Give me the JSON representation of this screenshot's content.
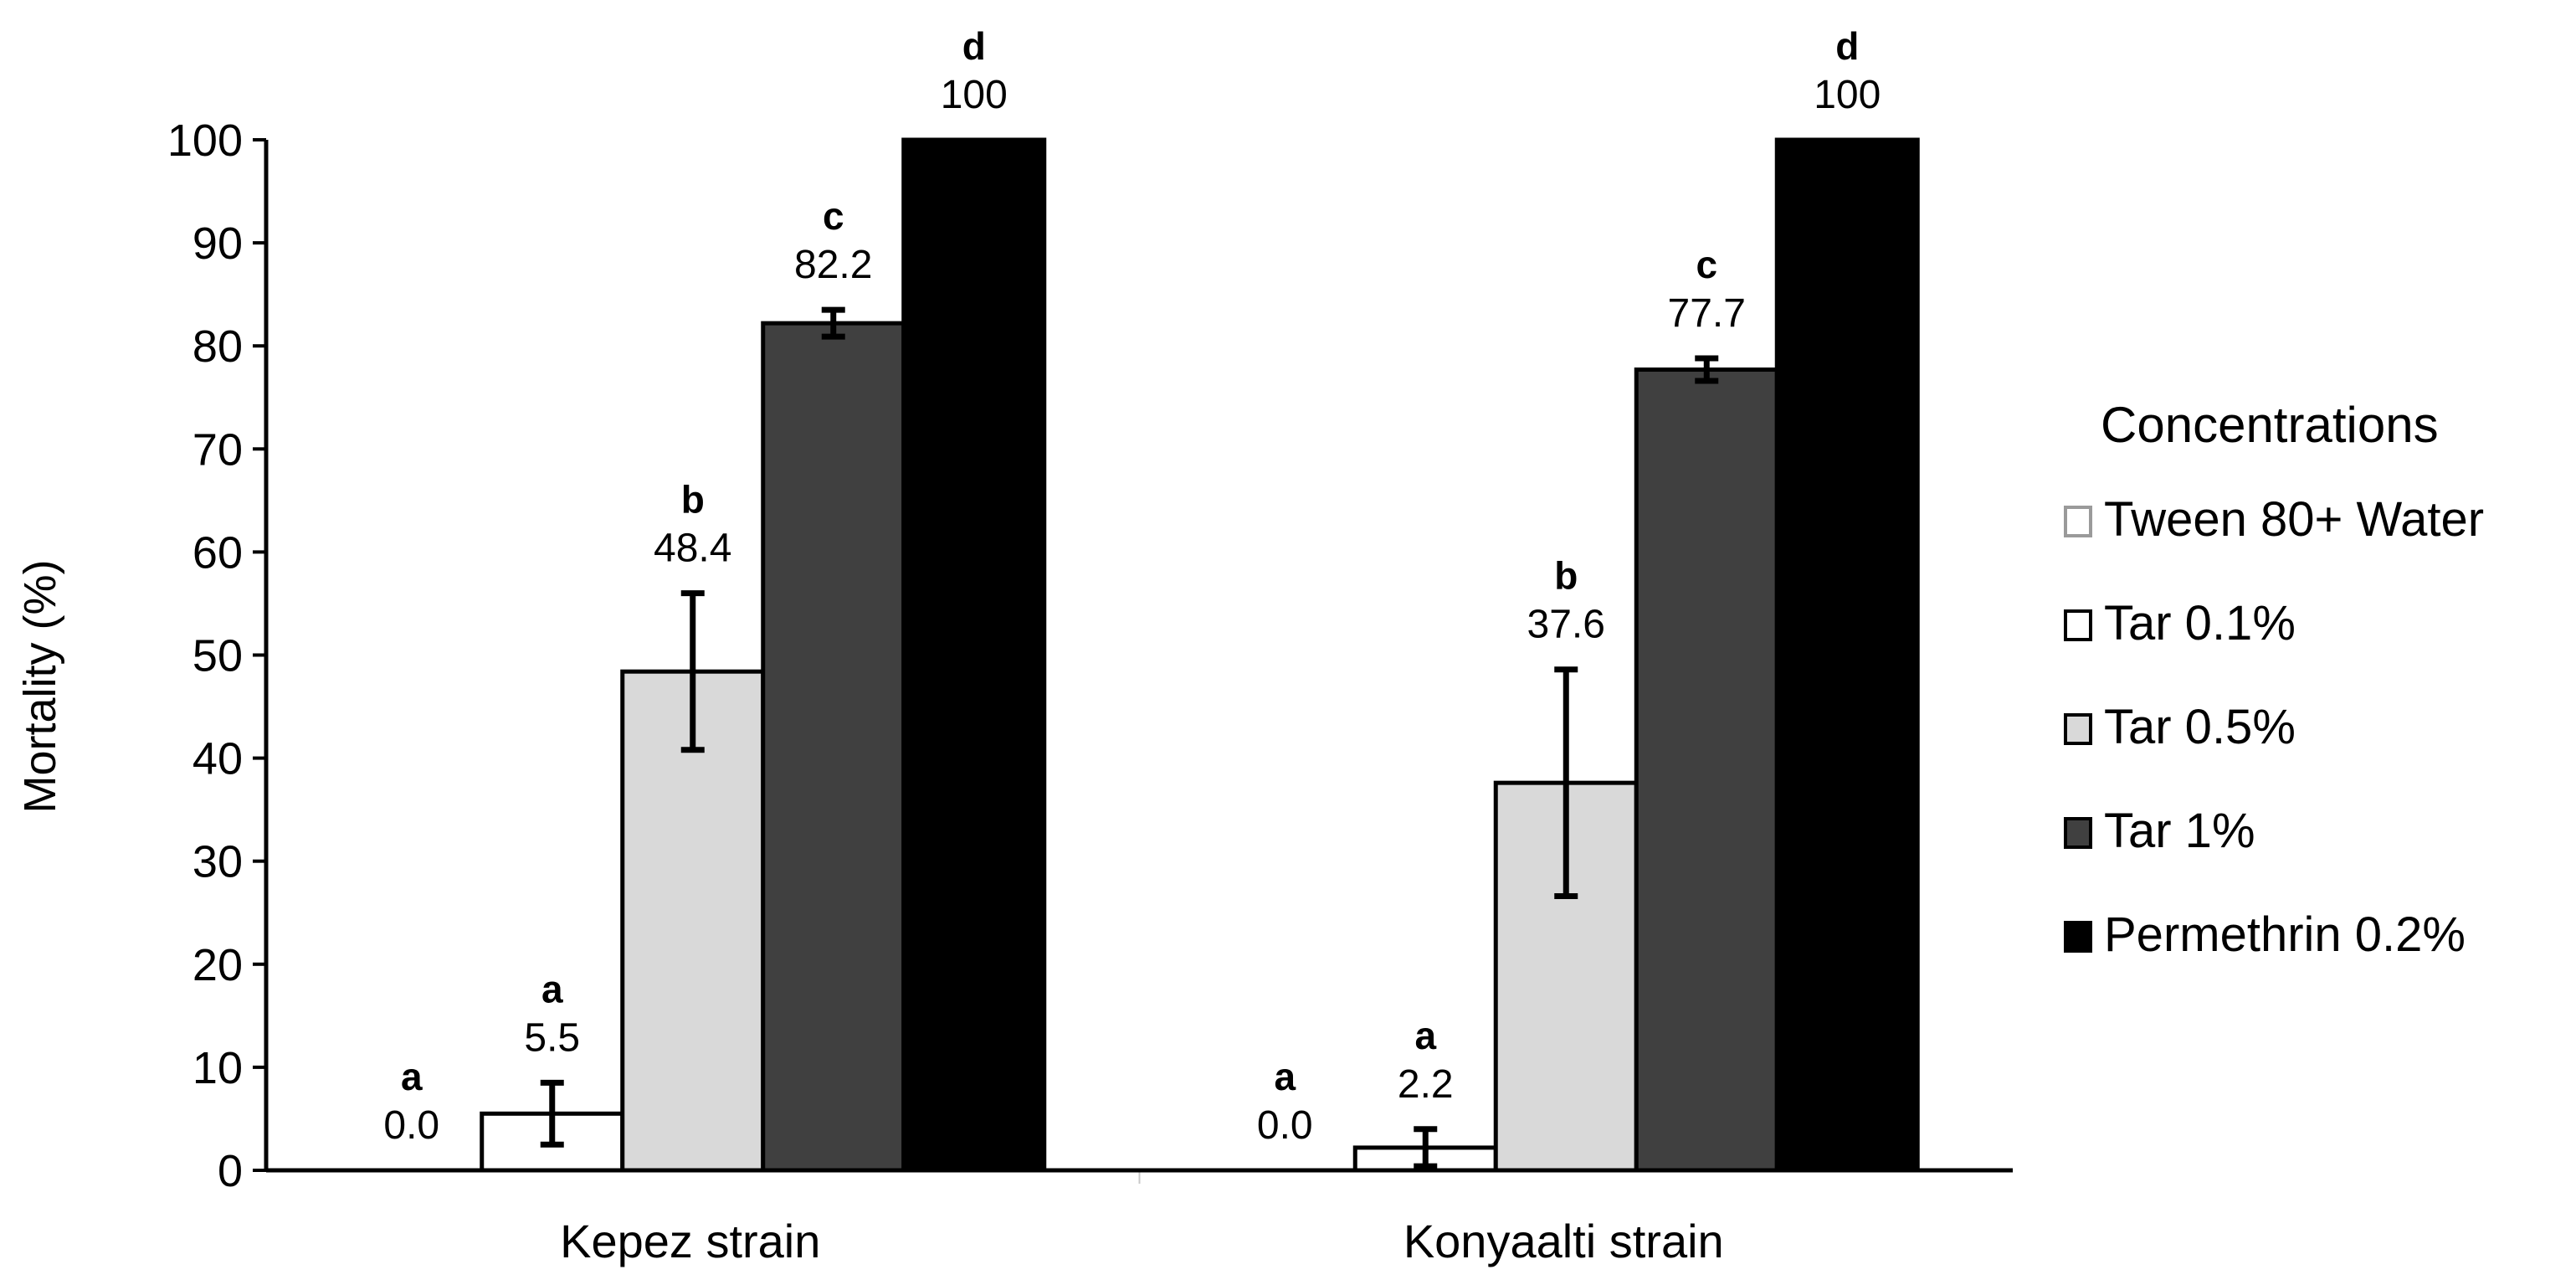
{
  "chart_data": {
    "type": "bar",
    "title": "",
    "xlabel": "",
    "ylabel": "Mortality (%)",
    "ylim": [
      0,
      100
    ],
    "yticks": [
      0,
      10,
      20,
      30,
      40,
      50,
      60,
      70,
      80,
      90,
      100
    ],
    "categories": [
      "Kepez strain",
      "Konyaalti strain"
    ],
    "legend_title": "Concentrations",
    "legend_position": "right",
    "series": [
      {
        "name": "Tween 80+ Water",
        "color": "#ffffff",
        "stroke": "#9a9a9a",
        "values": [
          0.0,
          0.0
        ],
        "labels": [
          "0.0",
          "0.0"
        ],
        "letters": [
          "a",
          "a"
        ],
        "errors": [
          0,
          0
        ]
      },
      {
        "name": "Tar 0.1%",
        "color": "#ffffff",
        "stroke": "#000000",
        "values": [
          5.5,
          2.2
        ],
        "labels": [
          "5.5",
          "2.2"
        ],
        "letters": [
          "a",
          "a"
        ],
        "errors": [
          3.0,
          1.8
        ]
      },
      {
        "name": "Tar 0.5%",
        "color": "#d9d9d9",
        "stroke": "#000000",
        "values": [
          48.4,
          37.6
        ],
        "labels": [
          "48.4",
          "37.6"
        ],
        "letters": [
          "b",
          "b"
        ],
        "errors": [
          7.6,
          11.0
        ]
      },
      {
        "name": "Tar 1%",
        "color": "#404040",
        "stroke": "#000000",
        "values": [
          82.2,
          77.7
        ],
        "labels": [
          "82.2",
          "77.7"
        ],
        "letters": [
          "c",
          "c"
        ],
        "errors": [
          1.3,
          1.1
        ]
      },
      {
        "name": "Permethrin 0.2%",
        "color": "#000000",
        "stroke": "#000000",
        "values": [
          100,
          100
        ],
        "labels": [
          "100",
          "100"
        ],
        "letters": [
          "d",
          "d"
        ],
        "errors": [
          0,
          0
        ]
      }
    ]
  }
}
